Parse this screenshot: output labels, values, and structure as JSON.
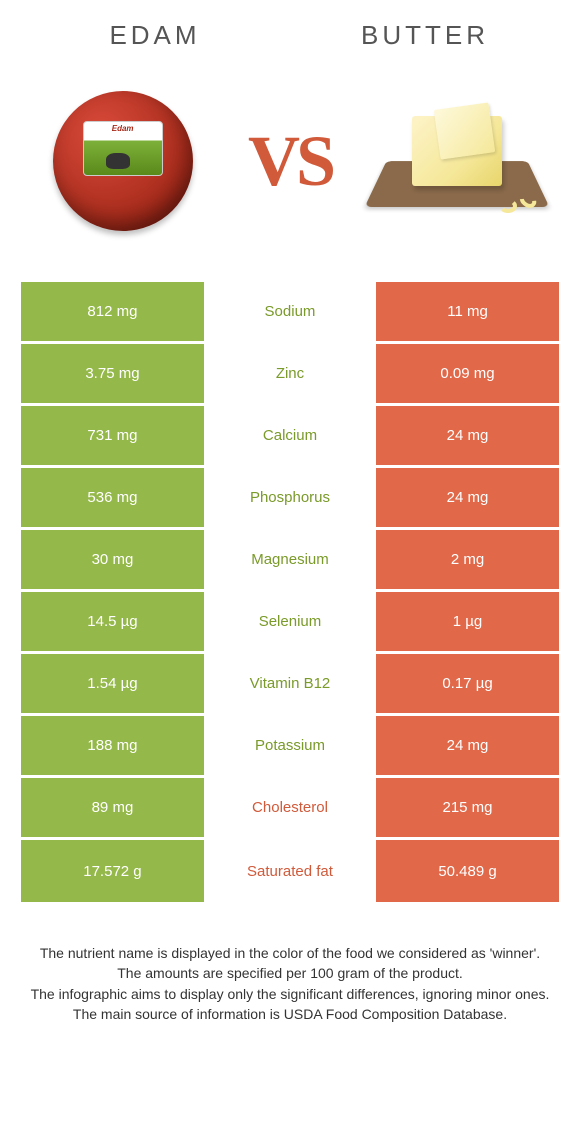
{
  "colors": {
    "left_bg": "#94b84a",
    "right_bg": "#e1694a",
    "winner_left_text": "#7a9a2a",
    "winner_right_text": "#d05a3a"
  },
  "header": {
    "left_title": "EDAM",
    "right_title": "BUTTER",
    "vs": "VS"
  },
  "rows": [
    {
      "left": "812 mg",
      "mid": "Sodium",
      "right": "11 mg",
      "winner": "left"
    },
    {
      "left": "3.75 mg",
      "mid": "Zinc",
      "right": "0.09 mg",
      "winner": "left"
    },
    {
      "left": "731 mg",
      "mid": "Calcium",
      "right": "24 mg",
      "winner": "left"
    },
    {
      "left": "536 mg",
      "mid": "Phosphorus",
      "right": "24 mg",
      "winner": "left"
    },
    {
      "left": "30 mg",
      "mid": "Magnesium",
      "right": "2 mg",
      "winner": "left"
    },
    {
      "left": "14.5 µg",
      "mid": "Selenium",
      "right": "1 µg",
      "winner": "left"
    },
    {
      "left": "1.54 µg",
      "mid": "Vitamin B12",
      "right": "0.17 µg",
      "winner": "left"
    },
    {
      "left": "188 mg",
      "mid": "Potassium",
      "right": "24 mg",
      "winner": "left"
    },
    {
      "left": "89 mg",
      "mid": "Cholesterol",
      "right": "215 mg",
      "winner": "right"
    },
    {
      "left": "17.572 g",
      "mid": "Saturated fat",
      "right": "50.489 g",
      "winner": "right"
    }
  ],
  "footer": {
    "line1": "The nutrient name is displayed in the color of the food we considered as 'winner'.",
    "line2": "The amounts are specified per 100 gram of the product.",
    "line3": "The infographic aims to display only the significant differences, ignoring minor ones.",
    "line4": "The main source of information is USDA Food Composition Database."
  }
}
